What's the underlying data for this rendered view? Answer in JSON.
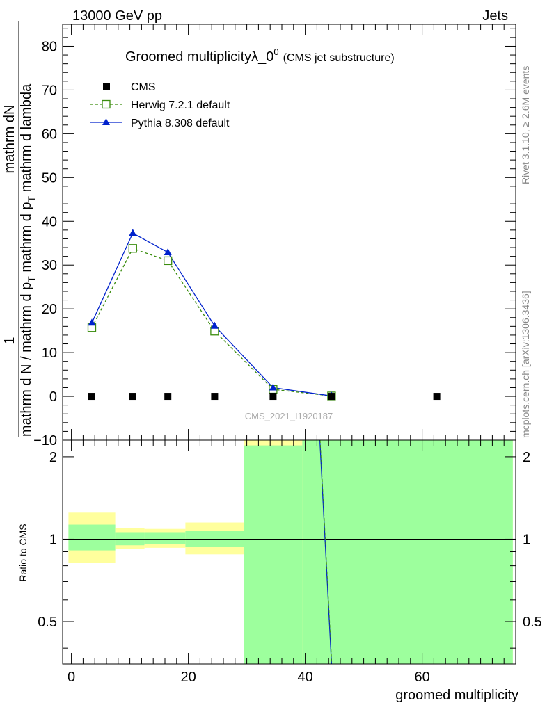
{
  "header": {
    "left": "13000 GeV pp",
    "right": "Jets"
  },
  "side_labels": {
    "rivet": "Rivet 3.1.10, ≥ 2.6M events",
    "mcplots": "mcplots.cern.ch [arXiv:1306.3436]"
  },
  "watermark": "CMS_2021_I1920187",
  "title": {
    "main": "Groomed multiplicityλ_0",
    "sup": "0",
    "sub": "(CMS jet substructure)"
  },
  "ylabel_main": {
    "num_top": "1",
    "num_bottom": "mathrm dN",
    "den": "mathrm d N / mathrm d p",
    "den_sub": "T",
    "den2": " mathrm d p",
    "den2_sub": "T",
    "den3": " mathrm d lambda"
  },
  "ylabel_ratio": "Ratio to CMS",
  "xlabel": "groomed multiplicity",
  "colors": {
    "cms": "#000000",
    "herwig": "#3a8c0d",
    "pythia": "#0022cc",
    "band_inner": "#9dff9d",
    "band_outer": "#ffff9d"
  },
  "chart_data": {
    "type": "line",
    "xlim": [
      -1.5,
      76
    ],
    "ylim": [
      -10,
      85
    ],
    "ratio_ylim": [
      0.35,
      2.3
    ],
    "xticks": [
      0,
      20,
      40,
      60
    ],
    "yticks": [
      -10,
      0,
      10,
      20,
      30,
      40,
      50,
      60,
      70,
      80
    ],
    "ratio_yticks": [
      0.5,
      1,
      2
    ],
    "series": [
      {
        "name": "CMS",
        "x": [
          3.5,
          10.5,
          16.5,
          24.5,
          34.5,
          44.5,
          62.5
        ],
        "y": [
          0,
          0,
          0,
          0,
          0,
          0,
          0
        ]
      },
      {
        "name": "Herwig 7.2.1 default",
        "x": [
          3.5,
          10.5,
          16.5,
          24.5,
          34.5,
          44.5
        ],
        "y": [
          15.7,
          33.8,
          31.0,
          14.9,
          1.6,
          0.1
        ]
      },
      {
        "name": "Pythia 8.308 default",
        "x": [
          3.5,
          10.5,
          16.5,
          24.5,
          34.5,
          44.5
        ],
        "y": [
          16.8,
          37.3,
          32.9,
          16.1,
          2.0,
          0.1
        ]
      }
    ],
    "ratio_bands": [
      {
        "x0": -0.5,
        "x1": 7.5,
        "inner": [
          0.91,
          1.13
        ],
        "outer": [
          0.82,
          1.25
        ]
      },
      {
        "x0": 7.5,
        "x1": 12.5,
        "inner": [
          0.95,
          1.06
        ],
        "outer": [
          0.92,
          1.1
        ]
      },
      {
        "x0": 12.5,
        "x1": 19.5,
        "inner": [
          0.96,
          1.06
        ],
        "outer": [
          0.93,
          1.09
        ]
      },
      {
        "x0": 19.5,
        "x1": 29.5,
        "inner": [
          0.94,
          1.07
        ],
        "outer": [
          0.88,
          1.15
        ]
      },
      {
        "x0": 29.5,
        "x1": 39.5,
        "inner": [
          0.35,
          2.2
        ],
        "outer": [
          0.35,
          2.3
        ]
      },
      {
        "x0": 39.5,
        "x1": 75.5,
        "inner": [
          0.35,
          2.3
        ],
        "outer": [
          0.35,
          2.3
        ]
      }
    ],
    "ratio_line": {
      "x": [
        42.5,
        44.5
      ],
      "y": [
        2.3,
        0.35
      ]
    }
  }
}
